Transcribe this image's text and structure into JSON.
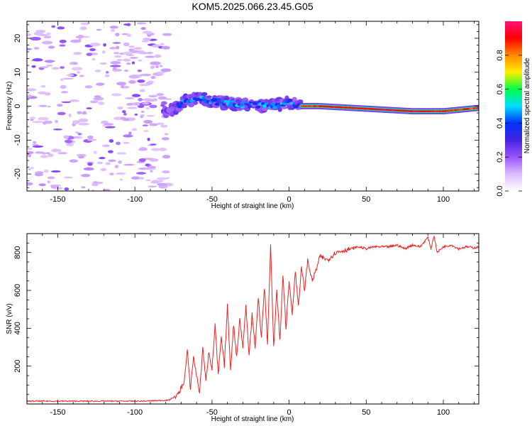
{
  "figure_title": "KOM5.2025.066.23.45.G05",
  "chart_data": [
    {
      "type": "heatmap",
      "title": "",
      "xlabel": "Height of straight line (km)",
      "ylabel": "Frequency (Hz)",
      "xlim": [
        -170,
        123
      ],
      "ylim": [
        -25,
        25
      ],
      "x_ticks": [
        "-150",
        "-100",
        "-50",
        "0",
        "50",
        "100"
      ],
      "y_ticks": [
        "-20",
        "-10",
        "0",
        "10",
        "20"
      ],
      "x_tick_values": [
        -150,
        -100,
        -50,
        0,
        50,
        100
      ],
      "y_tick_values": [
        -20,
        -10,
        0,
        10,
        20
      ],
      "colorbar": {
        "label": "Normalized spectral amplitude",
        "range": [
          0,
          1
        ],
        "ticks": [
          "0.0",
          "0.2",
          "0.4",
          "0.6",
          "0.8"
        ],
        "tick_values": [
          0,
          0.2,
          0.4,
          0.6,
          0.8
        ],
        "colors": [
          "#ffffff",
          "#ddbbff",
          "#9955ff",
          "#4422dd",
          "#0033ff",
          "#00ddff",
          "#00ff44",
          "#ffee00",
          "#ff8800",
          "#ff0000",
          "#ff1177"
        ]
      },
      "ridge": {
        "description_free_values": true,
        "x": [
          -80,
          -72,
          -65,
          -58,
          -50,
          -42,
          -35,
          -28,
          -20,
          -12,
          -5,
          0,
          8,
          20,
          40,
          60,
          80,
          100,
          123
        ],
        "frequency": [
          -2,
          0,
          2,
          2.5,
          1.5,
          1,
          0.5,
          0.3,
          0.5,
          0,
          0.5,
          1,
          0,
          0,
          -0.5,
          -1,
          -1.5,
          -1.5,
          -0.5
        ],
        "amplitude": [
          0.15,
          0.25,
          0.3,
          0.35,
          0.3,
          0.35,
          0.4,
          0.4,
          0.4,
          0.35,
          0.3,
          0.3,
          0.85,
          0.9,
          0.9,
          0.95,
          0.92,
          0.9,
          0.85
        ]
      }
    },
    {
      "type": "line",
      "title": "",
      "xlabel": "Height of straight line (km)",
      "ylabel": "SNR (v/v)",
      "xlim": [
        -170,
        123
      ],
      "ylim": [
        0,
        900
      ],
      "x_ticks": [
        "-150",
        "-100",
        "-50",
        "0",
        "50",
        "100"
      ],
      "y_ticks": [
        "200",
        "400",
        "600",
        "800"
      ],
      "x_tick_values": [
        -150,
        -100,
        -50,
        0,
        50,
        100
      ],
      "y_tick_values": [
        200,
        400,
        600,
        800
      ],
      "series": [
        {
          "color": "#ee2222",
          "x": [
            -170,
            -150,
            -130,
            -110,
            -95,
            -85,
            -78,
            -72,
            -68,
            -66,
            -64,
            -62,
            -60,
            -58,
            -56,
            -54,
            -52,
            -50,
            -48,
            -46,
            -44,
            -42,
            -40,
            -38,
            -36,
            -34,
            -32,
            -30,
            -28,
            -26,
            -24,
            -22,
            -20,
            -18,
            -16,
            -14,
            -12,
            -10,
            -8,
            -6,
            -4,
            -2,
            0,
            2,
            4,
            6,
            8,
            10,
            12,
            15,
            18,
            20,
            25,
            30,
            35,
            40,
            45,
            50,
            55,
            60,
            65,
            70,
            75,
            80,
            85,
            88,
            90,
            92,
            94,
            96,
            100,
            105,
            110,
            115,
            120,
            123
          ],
          "y": [
            15,
            15,
            15,
            15,
            15,
            18,
            20,
            50,
            120,
            280,
            80,
            250,
            150,
            60,
            300,
            120,
            280,
            180,
            420,
            150,
            350,
            200,
            520,
            180,
            420,
            250,
            450,
            300,
            520,
            250,
            480,
            300,
            560,
            350,
            620,
            320,
            840,
            300,
            600,
            330,
            680,
            400,
            650,
            480,
            700,
            520,
            720,
            600,
            760,
            650,
            720,
            780,
            760,
            800,
            810,
            820,
            830,
            820,
            830,
            830,
            830,
            840,
            820,
            840,
            830,
            860,
            880,
            820,
            890,
            800,
            830,
            840,
            820,
            830,
            825,
            830
          ]
        }
      ]
    }
  ]
}
